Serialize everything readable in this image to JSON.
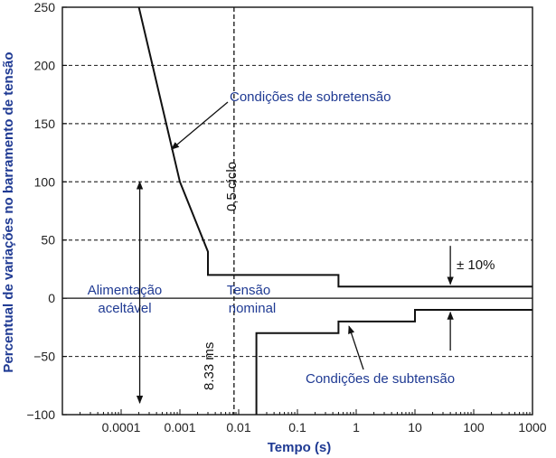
{
  "chart_data": {
    "type": "line",
    "title": "",
    "xlabel": "Tempo (s)",
    "ylabel": "Percentual de variações no barramento de tensão",
    "x_scale": "log",
    "xlim": [
      1e-05,
      1000
    ],
    "ylim": [
      -100,
      250
    ],
    "x_ticks": [
      "0.0001",
      "0.001",
      "0.01",
      "0.1",
      "1",
      "10",
      "100",
      "1000"
    ],
    "y_ticks": [
      "250",
      "200",
      "150",
      "100",
      "50",
      "0",
      "−50",
      "−100"
    ],
    "grid": "horizontal dashed",
    "series": [
      {
        "name": "Condições de sobretensão",
        "points": [
          {
            "x": 0.0002,
            "y": 250
          },
          {
            "x": 0.001,
            "y": 100
          },
          {
            "x": 0.003,
            "y": 40
          },
          {
            "x": 0.003,
            "y": 20
          },
          {
            "x": 0.5,
            "y": 20
          },
          {
            "x": 0.5,
            "y": 10
          },
          {
            "x": 1000,
            "y": 10
          }
        ]
      },
      {
        "name": "Condições de subtensão",
        "points": [
          {
            "x": 0.02,
            "y": -100
          },
          {
            "x": 0.02,
            "y": -30
          },
          {
            "x": 0.5,
            "y": -30
          },
          {
            "x": 0.5,
            "y": -20
          },
          {
            "x": 10,
            "y": -20
          },
          {
            "x": 10,
            "y": -10
          },
          {
            "x": 1000,
            "y": -10
          }
        ]
      }
    ],
    "reference_lines": [
      {
        "type": "vertical",
        "x": 0.00833,
        "label": "8.33 ms"
      },
      {
        "type": "vertical",
        "x": 0.00833,
        "label": "0,5 ciclo"
      },
      {
        "type": "horizontal",
        "y": 0
      }
    ],
    "annotations": {
      "overvoltage": "Condições de sobretensão",
      "undervoltage": "Condições de subtensão",
      "acceptable_line1": "Alimentação",
      "acceptable_line2": "aceltável",
      "nominal_line1": "Tensão",
      "nominal_line2": "nominal",
      "tolerance": "± 10%",
      "half_cycle": "0,5 ciclo",
      "ms": "8.33 ms"
    }
  }
}
